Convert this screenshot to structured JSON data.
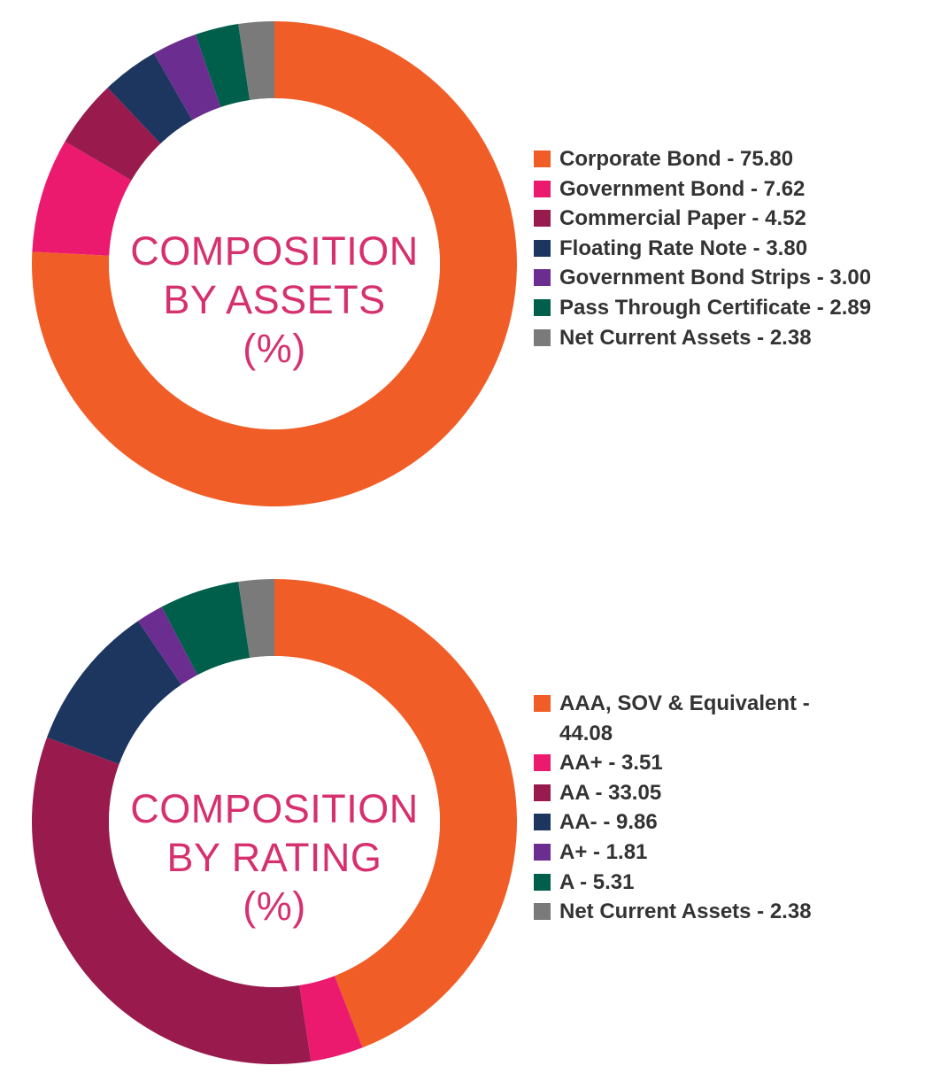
{
  "chart_data": [
    {
      "type": "pie",
      "title": "COMPOSITION BY ASSETS (%)",
      "title_lines": [
        "COMPOSITION",
        "BY ASSETS",
        "(%)"
      ],
      "title_color": "#d6306e",
      "slices": [
        {
          "label": "Corporate Bond - 75.80",
          "value": 75.8,
          "color": "#f15d27"
        },
        {
          "label": "Government Bond - 7.62",
          "value": 7.62,
          "color": "#ec1a6e"
        },
        {
          "label": "Commercial Paper - 4.52",
          "value": 4.52,
          "color": "#991b4e"
        },
        {
          "label": "Floating Rate Note - 3.80",
          "value": 3.8,
          "color": "#1d3660"
        },
        {
          "label": "Government Bond Strips - 3.00",
          "value": 3.0,
          "color": "#6c2d91"
        },
        {
          "label": "Pass Through Certificate - 2.89",
          "value": 2.89,
          "color": "#005f4b"
        },
        {
          "label": "Net Current Assets - 2.38",
          "value": 2.38,
          "color": "#7a7a7a"
        }
      ],
      "legend_position": "right"
    },
    {
      "type": "pie",
      "title": "COMPOSITION BY RATING (%)",
      "title_lines": [
        "COMPOSITION",
        "BY RATING",
        "(%)"
      ],
      "title_color": "#d6306e",
      "slices": [
        {
          "label": "AAA, SOV & Equivalent - 44.08",
          "value": 44.08,
          "color": "#f15d27"
        },
        {
          "label": "AA+ - 3.51",
          "value": 3.51,
          "color": "#ec1a6e"
        },
        {
          "label": "AA - 33.05",
          "value": 33.05,
          "color": "#991b4e"
        },
        {
          "label": "AA- - 9.86",
          "value": 9.86,
          "color": "#1d3660"
        },
        {
          "label": "A+ - 1.81",
          "value": 1.81,
          "color": "#6c2d91"
        },
        {
          "label": "A - 5.31",
          "value": 5.31,
          "color": "#005f4b"
        },
        {
          "label": "Net Current Assets - 2.38",
          "value": 2.38,
          "color": "#7a7a7a"
        }
      ],
      "legend_position": "right"
    }
  ]
}
